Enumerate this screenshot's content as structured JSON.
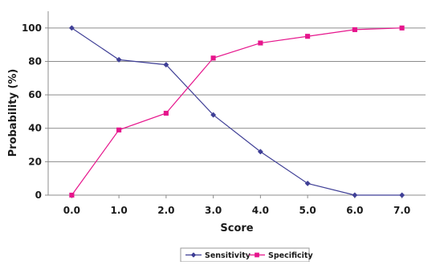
{
  "chart_data": {
    "type": "line",
    "title": "",
    "xlabel": "Score",
    "ylabel": "Probability (%)",
    "x": [
      0.0,
      1.0,
      2.0,
      3.0,
      4.0,
      5.0,
      6.0,
      7.0
    ],
    "x_tick_labels": [
      "0.0",
      "1.0",
      "2.0",
      "3.0",
      "4.0",
      "5.0",
      "6.0",
      "7.0"
    ],
    "y_ticks": [
      0,
      20,
      40,
      60,
      80,
      100
    ],
    "y_tick_labels": [
      "0",
      "20",
      "40",
      "60",
      "80",
      "100"
    ],
    "xlim": [
      -0.5,
      7.5
    ],
    "ylim": [
      0,
      110
    ],
    "grid": "horizontal",
    "legend_position": "bottom",
    "series": [
      {
        "name": "Sensitivity",
        "color": "#3f3f96",
        "marker": "diamond",
        "values": [
          100,
          81,
          78,
          48,
          26,
          7,
          0,
          0
        ]
      },
      {
        "name": "Specificity",
        "color": "#e6158c",
        "marker": "square",
        "values": [
          0,
          39,
          49,
          82,
          91,
          95,
          99,
          100
        ]
      }
    ]
  }
}
